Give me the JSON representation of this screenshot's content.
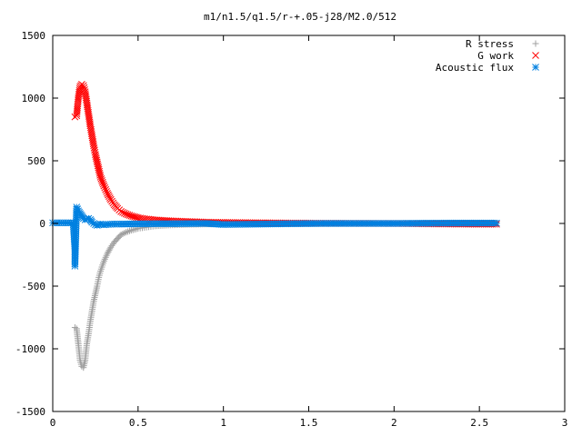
{
  "chart_data": {
    "type": "scatter",
    "title": "m1/n1.5/q1.5/r-+.05-j28/M2.0/512",
    "xlabel": "",
    "ylabel": "",
    "xlim": [
      0,
      3
    ],
    "ylim": [
      -1500,
      1500
    ],
    "x_ticks": [
      "0",
      "0.5",
      "1",
      "1.5",
      "2",
      "2.5",
      "3"
    ],
    "y_ticks": [
      "1500",
      "1000",
      "500",
      "0",
      "-500",
      "-1000",
      "-1500"
    ],
    "x_tick_values": [
      0,
      0.5,
      1,
      1.5,
      2,
      2.5,
      3
    ],
    "y_tick_values": [
      1500,
      1000,
      500,
      0,
      -500,
      -1000,
      -1500
    ],
    "grid": false,
    "legend_position": "top-right",
    "series": [
      {
        "name": "R stress",
        "marker": "plus",
        "color": "#a0a0a0",
        "x": [
          0.13,
          0.14,
          0.15,
          0.16,
          0.17,
          0.18,
          0.19,
          0.2,
          0.21,
          0.22,
          0.23,
          0.24,
          0.25,
          0.26,
          0.27,
          0.28,
          0.3,
          0.32,
          0.34,
          0.36,
          0.38,
          0.4,
          0.43,
          0.46,
          0.5,
          0.55,
          0.6,
          0.7,
          0.8,
          0.9,
          1.0,
          1.2,
          1.4,
          1.6,
          1.8,
          2.0,
          2.2,
          2.4,
          2.6
        ],
        "y": [
          -830,
          -840,
          -960,
          -1090,
          -1140,
          -1150,
          -1090,
          -960,
          -880,
          -780,
          -700,
          -620,
          -560,
          -500,
          -430,
          -380,
          -300,
          -240,
          -190,
          -150,
          -120,
          -90,
          -70,
          -55,
          -40,
          -30,
          -20,
          -12,
          -8,
          -5,
          -3,
          -2,
          -1,
          -1,
          0,
          0,
          0,
          0,
          0
        ]
      },
      {
        "name": "G work",
        "marker": "cross",
        "color": "#ff0000",
        "x": [
          0.13,
          0.14,
          0.15,
          0.16,
          0.17,
          0.18,
          0.19,
          0.2,
          0.21,
          0.22,
          0.23,
          0.24,
          0.25,
          0.26,
          0.27,
          0.28,
          0.3,
          0.32,
          0.34,
          0.36,
          0.38,
          0.4,
          0.43,
          0.46,
          0.5,
          0.55,
          0.6,
          0.7,
          0.8,
          0.9,
          1.0,
          1.2,
          1.4,
          1.6,
          1.8,
          2.0,
          2.2,
          2.4,
          2.6
        ],
        "y": [
          850,
          860,
          1000,
          1090,
          1110,
          1100,
          1050,
          960,
          870,
          780,
          700,
          620,
          550,
          490,
          430,
          370,
          300,
          240,
          190,
          150,
          120,
          95,
          75,
          60,
          45,
          35,
          28,
          20,
          15,
          10,
          8,
          5,
          3,
          2,
          1,
          0,
          -3,
          -5,
          -6
        ]
      },
      {
        "name": "Acoustic flux",
        "marker": "star",
        "color": "#0080e0",
        "x": [
          0.0,
          0.05,
          0.1,
          0.12,
          0.13,
          0.13,
          0.14,
          0.15,
          0.16,
          0.17,
          0.18,
          0.19,
          0.2,
          0.21,
          0.22,
          0.23,
          0.24,
          0.25,
          0.26,
          0.28,
          0.3,
          0.35,
          0.4,
          0.5,
          0.6,
          0.7,
          0.8,
          0.9,
          1.0,
          1.2,
          1.4,
          1.6,
          1.8,
          2.0,
          2.2,
          2.4,
          2.6
        ],
        "y": [
          5,
          5,
          5,
          5,
          -210,
          -340,
          130,
          100,
          80,
          60,
          40,
          30,
          35,
          40,
          30,
          10,
          0,
          -10,
          -15,
          -5,
          -10,
          -5,
          -5,
          -3,
          -2,
          -2,
          -1,
          0,
          -8,
          -5,
          -2,
          0,
          0,
          0,
          2,
          3,
          3
        ]
      }
    ]
  }
}
